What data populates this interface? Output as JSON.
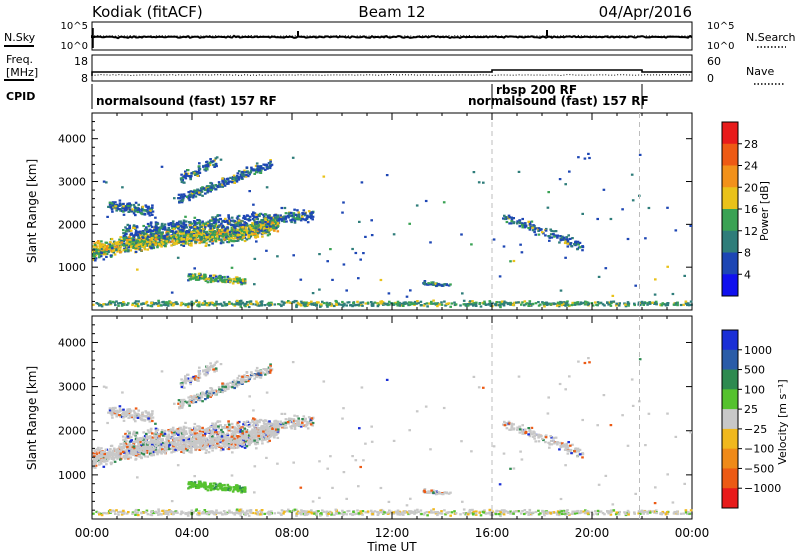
{
  "header": {
    "radar_title": "Kodiak (fitACF)",
    "beam": "Beam 12",
    "date": "04/Apr/2016"
  },
  "panels": {
    "noise": {
      "left_label": "N.Sky",
      "right_label": "N.Search",
      "left_ticks": [
        "10^5",
        "10^0"
      ],
      "right_ticks": [
        "10^5",
        "10^0"
      ]
    },
    "freq": {
      "left_label_1": "Freq.",
      "left_label_2": "[MHz]",
      "right_label": "Nave",
      "left_ticks": [
        "18",
        "8"
      ],
      "right_ticks": [
        "60",
        "0"
      ]
    },
    "cpid": {
      "label": "CPID",
      "segments": [
        {
          "text": "normalsound (fast) 157 RF"
        },
        {
          "text": "rbsp 200 RF"
        },
        {
          "text": "normalsound (fast) 157 RF"
        }
      ]
    }
  },
  "chart_data": [
    {
      "type": "heatmap",
      "title": "",
      "xlabel": "Time UT",
      "ylabel": "Slant Range [km]",
      "ylim": [
        0,
        4600
      ],
      "xlim": [
        0,
        24
      ],
      "y_ticks": [
        1000,
        2000,
        3000,
        4000
      ],
      "x_tick_labels": [
        "00:00",
        "04:00",
        "08:00",
        "12:00",
        "16:00",
        "20:00",
        "00:00"
      ],
      "colorbar_label": "Power [dB]",
      "colorbar_ticks": [
        "4",
        "8",
        "12",
        "16",
        "20",
        "24",
        "28"
      ],
      "colors": [
        "#1010ee",
        "#1d46b4",
        "#2f7d7a",
        "#3aa254",
        "#e9c21a",
        "#f2911a",
        "#ee5a14",
        "#e81b1b"
      ],
      "cpid_change_times": [
        16.0,
        21.9
      ]
    },
    {
      "type": "heatmap",
      "title": "",
      "xlabel": "Time UT",
      "ylabel": "Slant Range [km]",
      "ylim": [
        0,
        4600
      ],
      "xlim": [
        0,
        24
      ],
      "y_ticks": [
        1000,
        2000,
        3000,
        4000
      ],
      "x_tick_labels": [
        "00:00",
        "04:00",
        "08:00",
        "12:00",
        "16:00",
        "20:00",
        "00:00"
      ],
      "colorbar_label": "Velocity [m s⁻¹]",
      "colorbar_ticks": [
        "1000",
        "500",
        "100",
        "25",
        "−25",
        "−100",
        "−500",
        "−1000"
      ],
      "colors": [
        "#1a2fd6",
        "#2a5ca8",
        "#2e8a50",
        "#55c22e",
        "#c8c8c8",
        "#f0b81e",
        "#ef8a18",
        "#ec5a14",
        "#e81b1b"
      ],
      "cpid_change_times": [
        16.0,
        21.9
      ]
    }
  ]
}
